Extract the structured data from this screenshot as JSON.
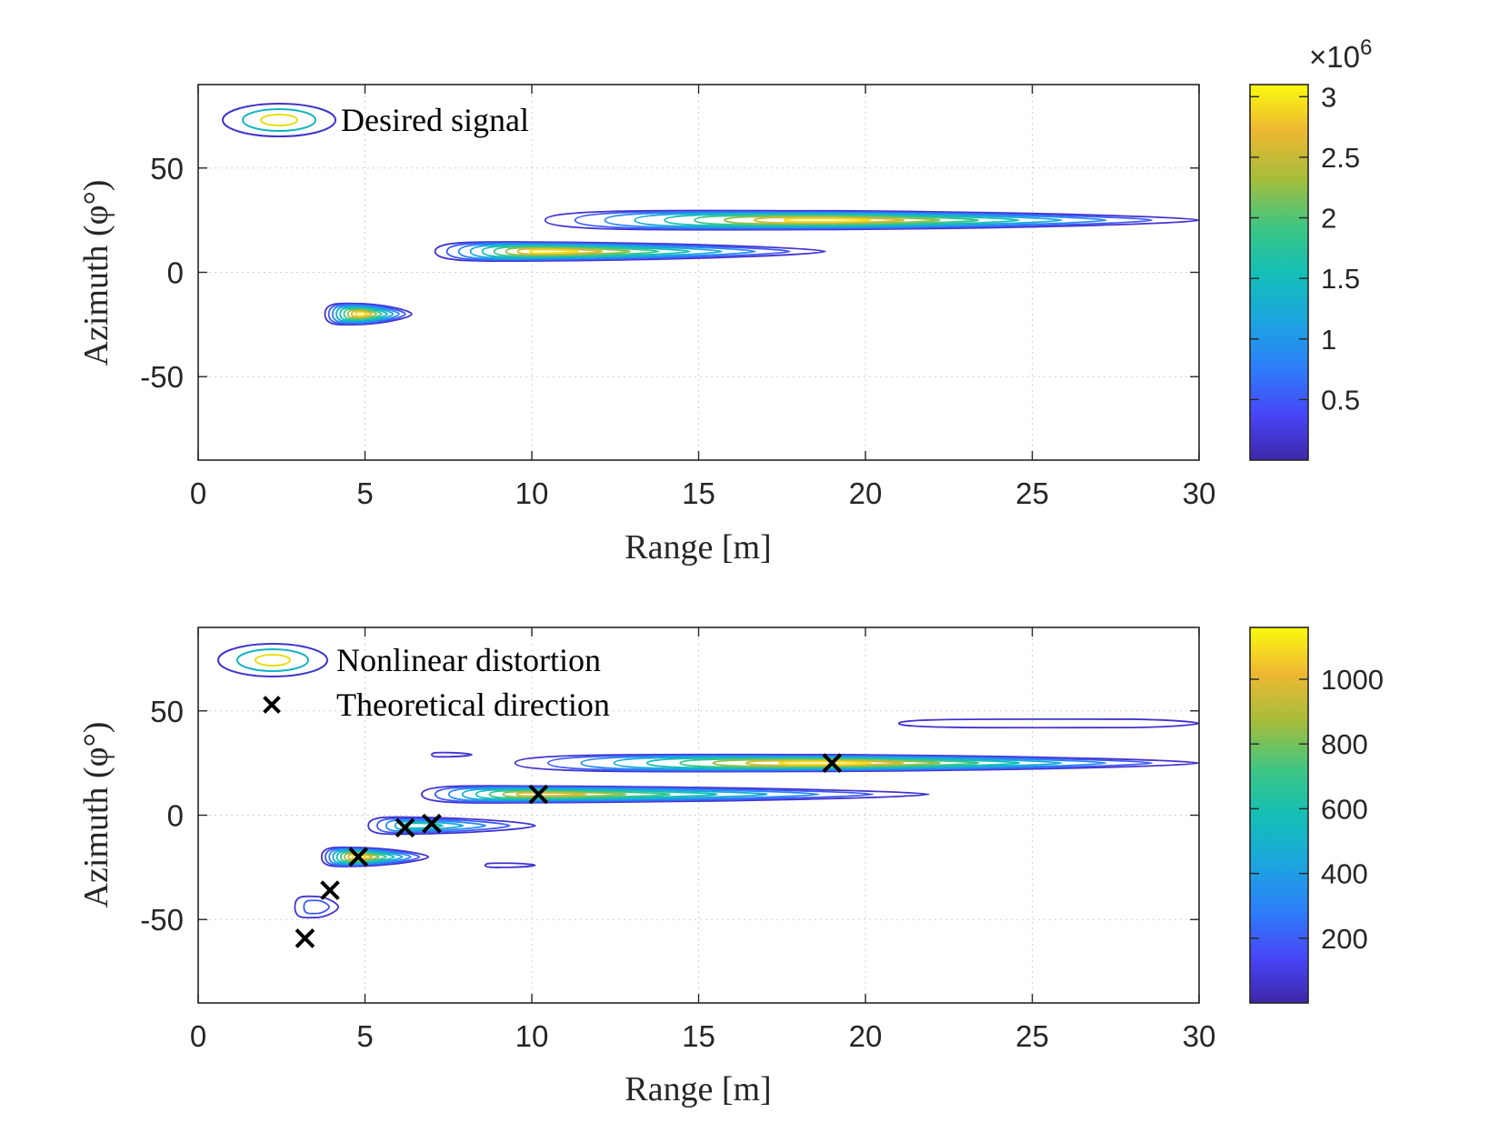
{
  "chart_data": [
    {
      "type": "contour",
      "title": "",
      "xlabel": "Range [m]",
      "ylabel": "Azimuth (φ°)",
      "xlim": [
        0,
        30
      ],
      "ylim": [
        -90,
        90
      ],
      "xticks": [
        "0",
        "5",
        "10",
        "15",
        "20",
        "25",
        "30"
      ],
      "yticks": [
        "50",
        "0",
        "-50"
      ],
      "legend": {
        "position": "top-left",
        "entries": [
          "Desired signal"
        ]
      },
      "colorbar": {
        "range": [
          0,
          3100000
        ],
        "ticks": [
          "0.5",
          "1",
          "1.5",
          "2",
          "2.5",
          "3"
        ],
        "multiplier_base": "×10",
        "multiplier_exp": "6"
      },
      "blobs": [
        {
          "x_min": 3.8,
          "x_max": 6.4,
          "y_center": -20,
          "y_half": 5,
          "peak_x": 4.9,
          "intensity": 1.0
        },
        {
          "x_min": 7.1,
          "x_max": 18.8,
          "y_center": 10,
          "y_half": 4.5,
          "peak_x": 10.5,
          "intensity": 1.0
        },
        {
          "x_min": 10.4,
          "x_max": 30,
          "y_center": 25,
          "y_half": 4.5,
          "peak_x": 19,
          "intensity": 1.0
        }
      ],
      "markers": []
    },
    {
      "type": "contour",
      "title": "",
      "xlabel": "Range [m]",
      "ylabel": "Azimuth (φ°)",
      "xlim": [
        0,
        30
      ],
      "ylim": [
        -90,
        90
      ],
      "xticks": [
        "0",
        "5",
        "10",
        "15",
        "20",
        "25",
        "30"
      ],
      "yticks": [
        "50",
        "0",
        "-50"
      ],
      "legend": {
        "position": "top-left",
        "entries": [
          "Nonlinear distortion",
          "Theoretical direction"
        ]
      },
      "colorbar": {
        "range": [
          0,
          1160
        ],
        "ticks": [
          "200",
          "400",
          "600",
          "800",
          "1000"
        ],
        "multiplier_base": "",
        "multiplier_exp": ""
      },
      "blobs": [
        {
          "x_min": 21,
          "x_max": 30,
          "y_center": 44,
          "y_half": 2,
          "peak_x": 28,
          "intensity": 0.12
        },
        {
          "x_min": 7,
          "x_max": 8.2,
          "y_center": 29,
          "y_half": 1,
          "peak_x": 7.5,
          "intensity": 0.1
        },
        {
          "x_min": 9.5,
          "x_max": 30,
          "y_center": 25,
          "y_half": 4,
          "peak_x": 19,
          "intensity": 1.0
        },
        {
          "x_min": 6.7,
          "x_max": 21.9,
          "y_center": 10,
          "y_half": 4,
          "peak_x": 10.2,
          "intensity": 0.85
        },
        {
          "x_min": 5.1,
          "x_max": 10.1,
          "y_center": -5,
          "y_half": 4,
          "peak_x": 6.6,
          "intensity": 0.6
        },
        {
          "x_min": 3.7,
          "x_max": 6.9,
          "y_center": -20,
          "y_half": 4.5,
          "peak_x": 4.8,
          "intensity": 1.0
        },
        {
          "x_min": 8.6,
          "x_max": 10.1,
          "y_center": -24,
          "y_half": 1,
          "peak_x": 9.3,
          "intensity": 0.1
        },
        {
          "x_min": 2.9,
          "x_max": 4.2,
          "y_center": -44,
          "y_half": 5,
          "peak_x": 3.6,
          "intensity": 0.22
        }
      ],
      "markers": [
        {
          "x": 3.2,
          "y": -59
        },
        {
          "x": 3.95,
          "y": -36
        },
        {
          "x": 4.8,
          "y": -20
        },
        {
          "x": 6.2,
          "y": -6
        },
        {
          "x": 7.0,
          "y": -4
        },
        {
          "x": 10.2,
          "y": 10
        },
        {
          "x": 19.0,
          "y": 25
        }
      ]
    }
  ]
}
